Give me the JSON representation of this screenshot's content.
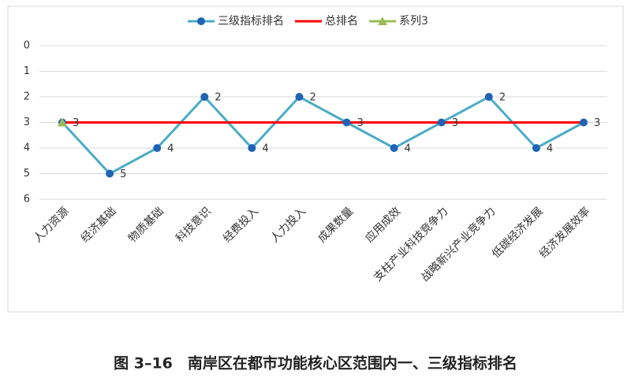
{
  "chart_data": {
    "type": "line",
    "title": "图 3–16　南岸区在都市功能核心区范围内一、三级指标排名",
    "categories": [
      "人力资源",
      "经济基础",
      "物质基础",
      "科技意识",
      "经费投入",
      "人力投入",
      "成果数量",
      "应用成效",
      "支柱产业科技竞争力",
      "战略新兴产业竞争力",
      "低碳经济发展",
      "经济发展效率"
    ],
    "series": [
      {
        "name": "三级指标排名",
        "color": "#4bacc6",
        "marker": "circle",
        "marker_color": "#1f64b4",
        "data_labels": true,
        "values": [
          3,
          5,
          4,
          2,
          4,
          2,
          3,
          4,
          3,
          2,
          4,
          3
        ]
      },
      {
        "name": "总排名",
        "color": "#ff0000",
        "marker": "none",
        "data_labels": false,
        "values": [
          3,
          3,
          3,
          3,
          3,
          3,
          3,
          3,
          3,
          3,
          3,
          3
        ]
      },
      {
        "name": "系列3",
        "color": "#9bbb59",
        "marker": "triangle",
        "marker_color": "#9bbb59",
        "data_labels": false,
        "values": [
          3,
          null,
          null,
          null,
          null,
          null,
          null,
          null,
          null,
          null,
          null,
          null
        ]
      }
    ],
    "ylim": [
      0,
      6
    ],
    "yticks": [
      0,
      1,
      2,
      3,
      4,
      5,
      6
    ],
    "y_inverted": true,
    "grid": true,
    "legend": "top"
  }
}
